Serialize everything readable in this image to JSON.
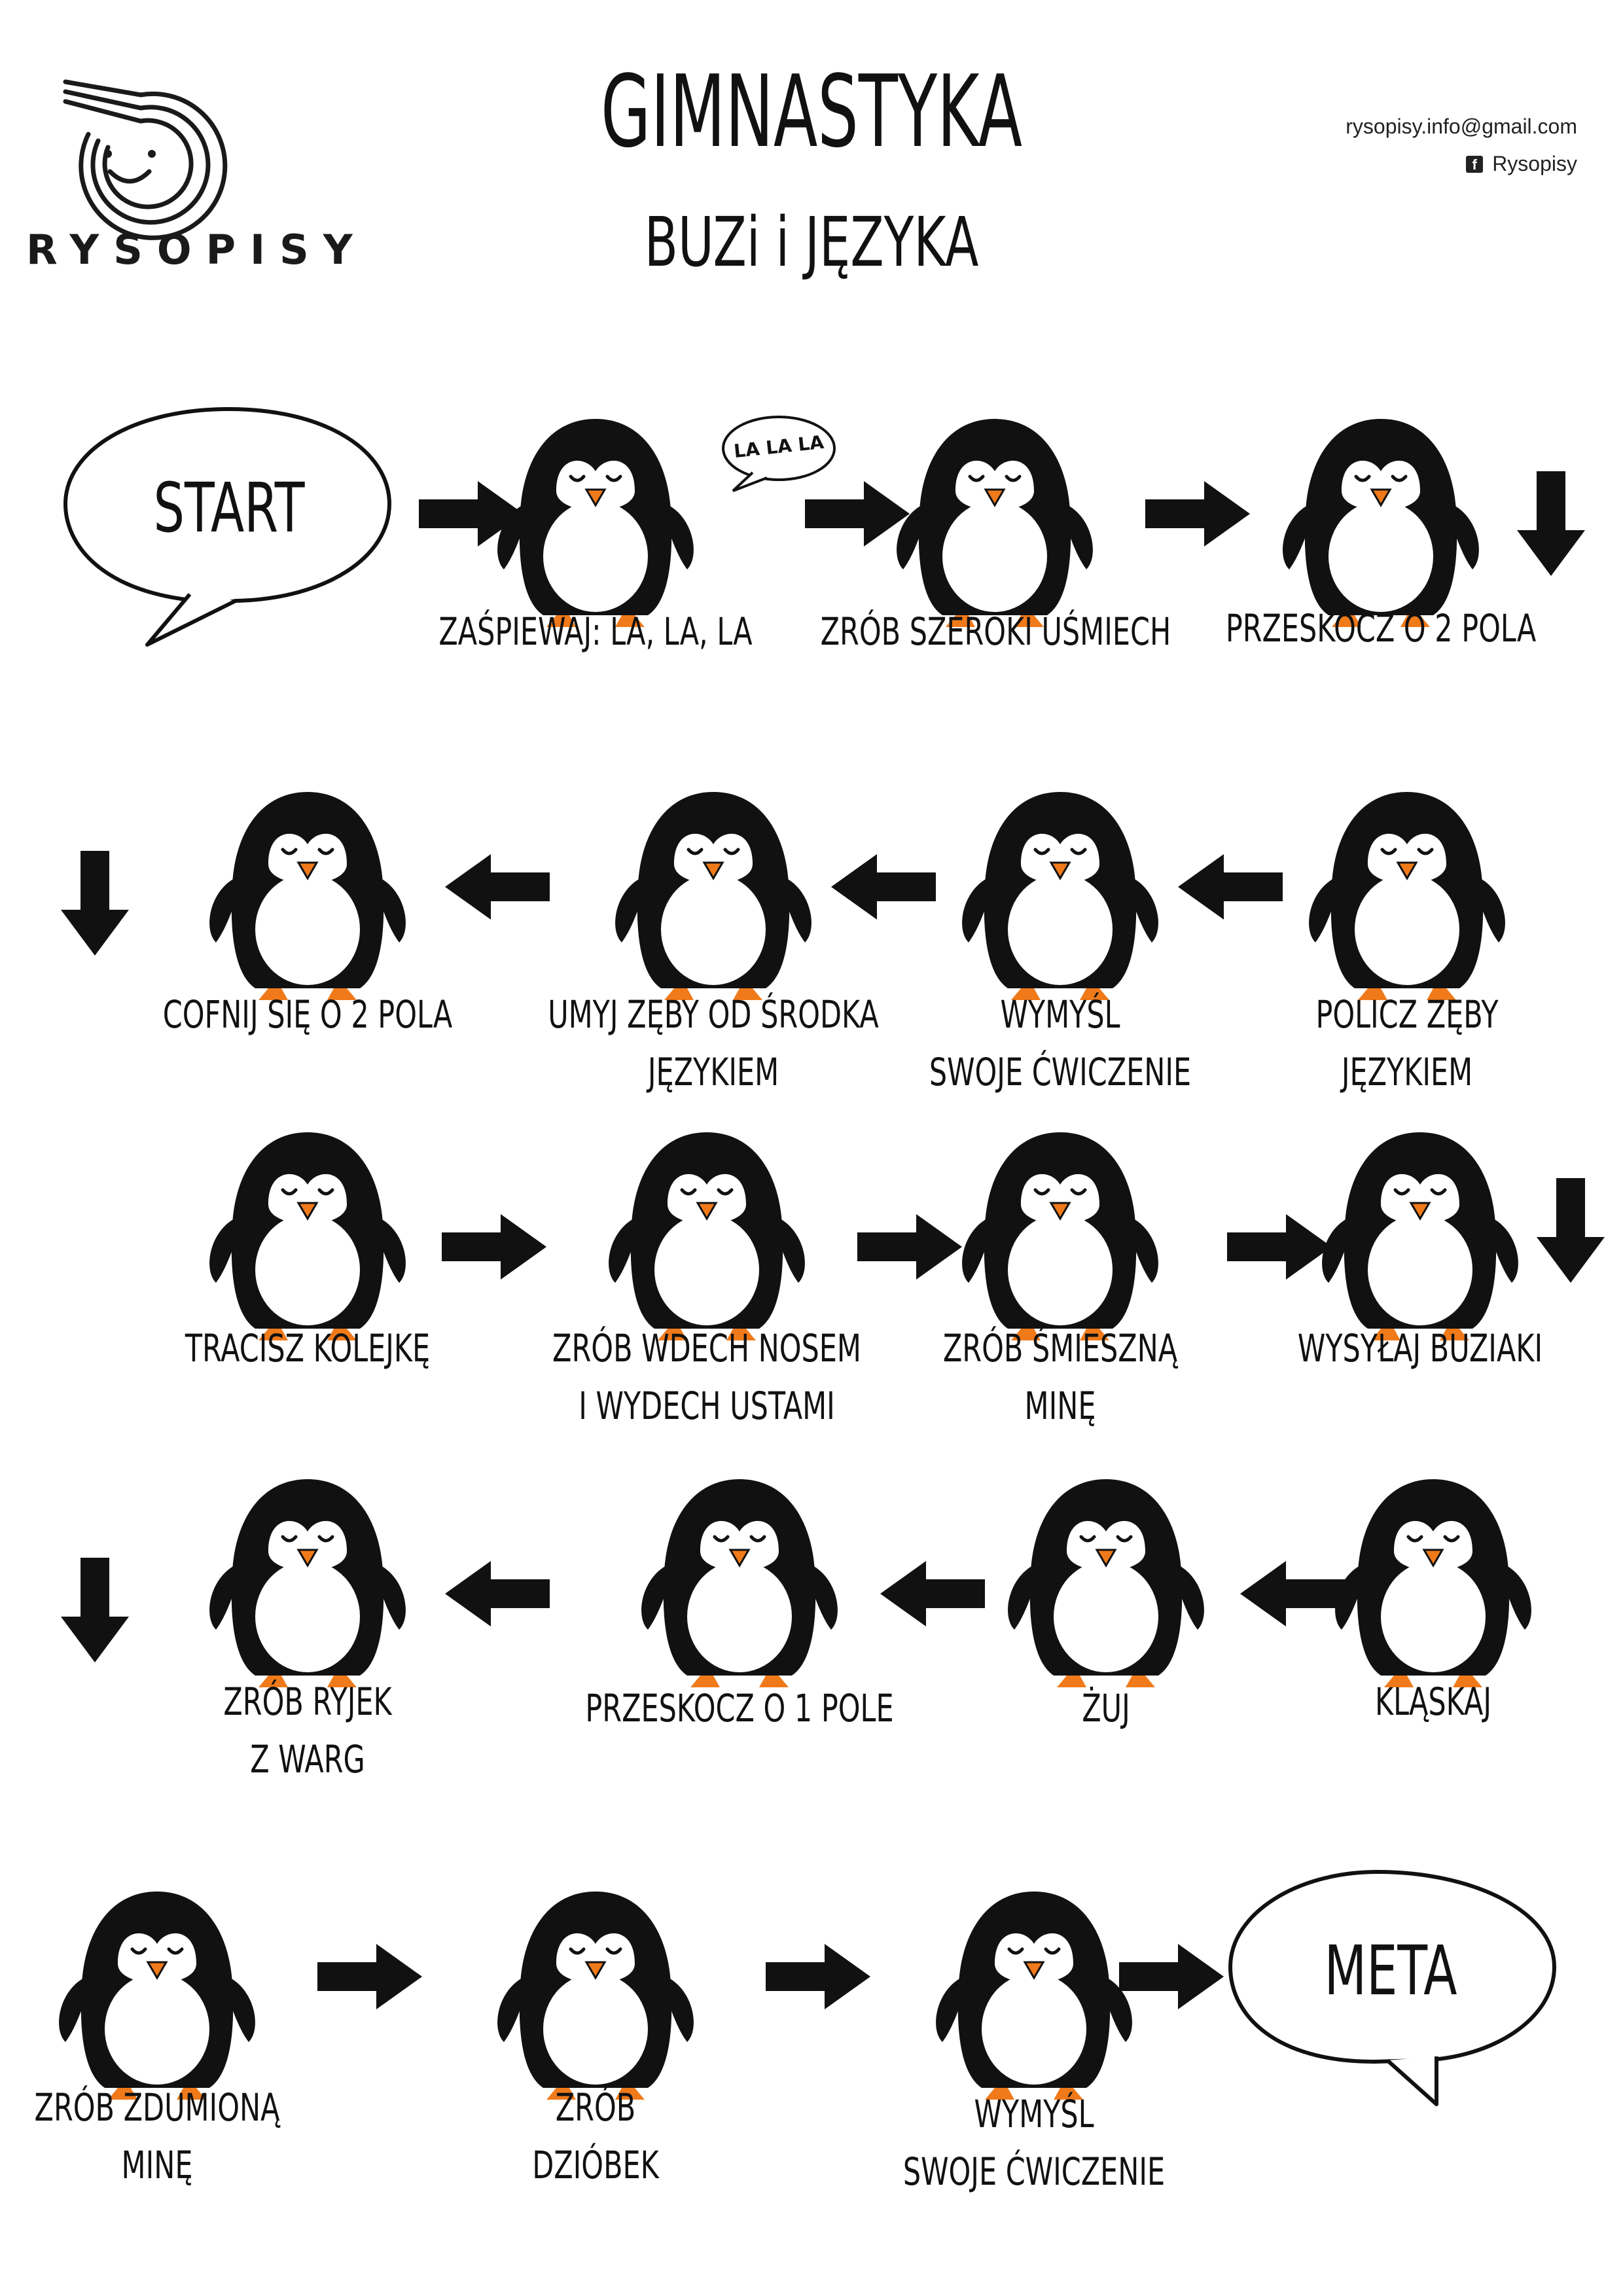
{
  "header": {
    "logo_text": "RYSOPISY",
    "title": "GIMNASTYKA",
    "subtitle": "BUZi i JĘZYKA",
    "email": "rysopisy.info@gmail.com",
    "facebook_icon": "facebook-icon",
    "facebook_name": "Rysopisy"
  },
  "board": {
    "start_label": "START",
    "finish_label": "META",
    "speech_bubble_text": "LA LA LA",
    "accent_color": "#f07a1a",
    "ink_color": "#111111",
    "squares": [
      {
        "lines": [
          "ZAŚPIEWAJ: LA, LA, LA"
        ]
      },
      {
        "lines": [
          "ZRÓB SZEROKI UŚMIECH"
        ]
      },
      {
        "lines": [
          "PRZESKOCZ O 2 POLA"
        ]
      },
      {
        "lines": [
          "POLICZ ZĘBY",
          "JĘZYKIEM"
        ]
      },
      {
        "lines": [
          "WYMYŚL",
          "SWOJE ĆWICZENIE"
        ]
      },
      {
        "lines": [
          "UMYJ ZĘBY OD ŚRODKA",
          "JĘZYKIEM"
        ]
      },
      {
        "lines": [
          "COFNIJ SIĘ O 2 POLA"
        ]
      },
      {
        "lines": [
          "TRACISZ KOLEJKĘ"
        ]
      },
      {
        "lines": [
          "ZRÓB WDECH NOSEM",
          "I WYDECH USTAMI"
        ]
      },
      {
        "lines": [
          "ZRÓB ŚMIESZNĄ",
          "MINĘ"
        ]
      },
      {
        "lines": [
          "WYSYŁAJ BUZIAKI"
        ]
      },
      {
        "lines": [
          "KLĄSKAJ"
        ]
      },
      {
        "lines": [
          "ŻUJ"
        ]
      },
      {
        "lines": [
          "PRZESKOCZ O 1 POLE"
        ]
      },
      {
        "lines": [
          "ZRÓB RYJEK",
          "Z WARG"
        ]
      },
      {
        "lines": [
          "ZRÓB ZDUMIONĄ",
          "MINĘ"
        ]
      },
      {
        "lines": [
          "ZRÓB",
          "DZIÓBEK"
        ]
      },
      {
        "lines": [
          "WYMYŚL",
          "SWOJE ĆWICZENIE"
        ]
      }
    ]
  }
}
